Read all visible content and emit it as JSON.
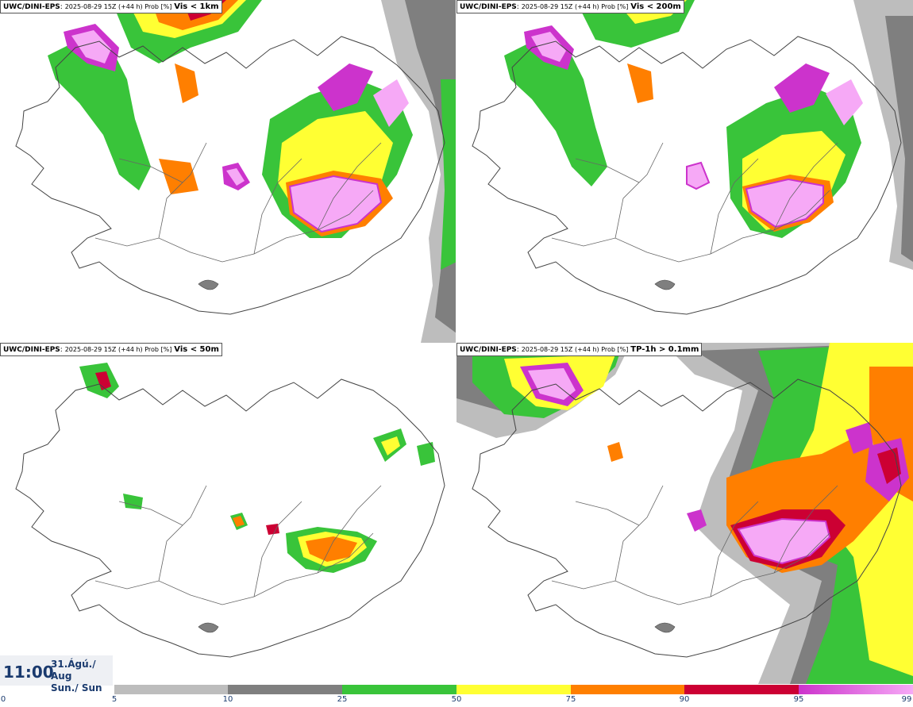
{
  "panels": [
    {
      "source": "UWC/DINI-EPS",
      "run": "2025-08-29 15Z (+44 h) Prob [%]",
      "variable": "Vis < 1km"
    },
    {
      "source": "UWC/DINI-EPS",
      "run": "2025-08-29 15Z (+44 h) Prob [%]",
      "variable": "Vis < 200m"
    },
    {
      "source": "UWC/DINI-EPS",
      "run": "2025-08-29 15Z (+44 h) Prob [%]",
      "variable": "Vis < 50m"
    },
    {
      "source": "UWC/DINI-EPS",
      "run": "2025-08-29 15Z (+44 h) Prob [%]",
      "variable": "TP-1h > 0.1mm"
    }
  ],
  "valid": {
    "time": "11:00",
    "date_line1": "31.Ágú./ Aug",
    "date_line2": "Sun./ Sun"
  },
  "legend": {
    "ticks": [
      "0",
      "5",
      "10",
      "25",
      "50",
      "75",
      "90",
      "95",
      "99"
    ],
    "colors": [
      "#ffffff",
      "#bdbdbd",
      "#7f7f7f",
      "#39c43a",
      "#ffff33",
      "#ff7f00",
      "#cc0033",
      "#cc33cc",
      "#f6a9f6"
    ]
  }
}
